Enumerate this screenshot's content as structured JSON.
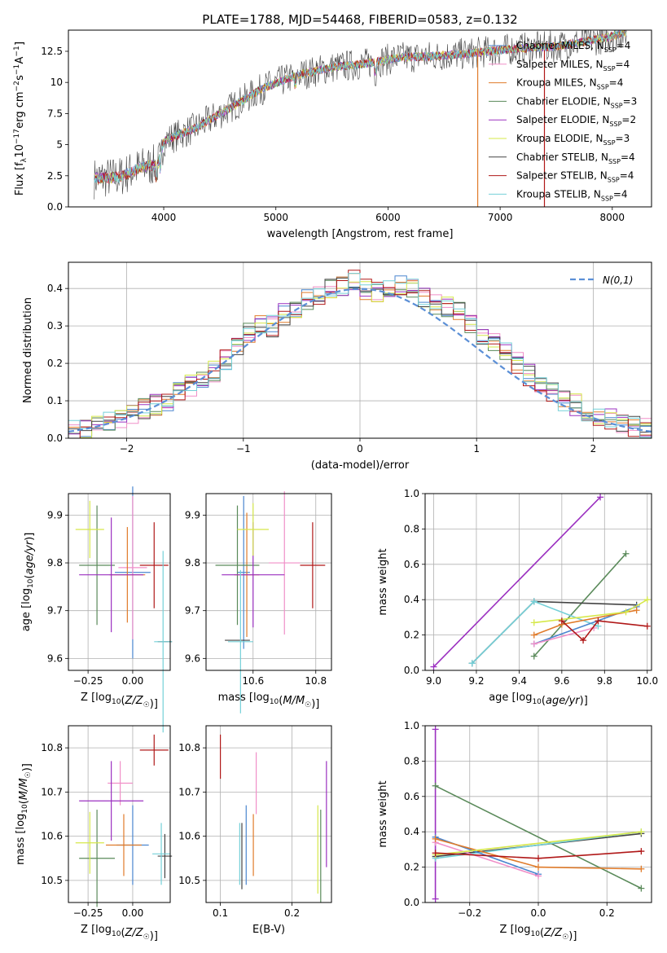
{
  "title": "PLATE=1788, MJD=54468, FIBERID=0583, z=0.132",
  "colors": {
    "chabrier_miles": "#4a86cf",
    "salpeter_miles": "#f08fc8",
    "kroupa_miles": "#e07b2a",
    "chabrier_elodie": "#5a8a5a",
    "salpeter_elodie": "#9b30c0",
    "kroupa_elodie": "#d6e84a",
    "chabrier_stelib": "#444444",
    "salpeter_stelib": "#b01818",
    "kroupa_stelib": "#74d0d8",
    "normal": "#5b8fd6",
    "grid": "#b0b0b0"
  },
  "chart_data": [
    {
      "id": "spectrum",
      "type": "line",
      "xlabel": "wavelength [Angstrom, rest frame]",
      "ylabel_parts": [
        "Flux [f",
        "λ",
        "10",
        "−17",
        " erg cm",
        "−2",
        " s",
        "−1",
        " A",
        "−1",
        "]"
      ],
      "xlim": [
        3150,
        8350
      ],
      "ylim": [
        0,
        14.2
      ],
      "xticks": [
        4000,
        5000,
        6000,
        7000,
        8000
      ],
      "yticks": [
        0.0,
        2.5,
        5.0,
        7.5,
        10.0,
        12.5
      ],
      "legend": [
        {
          "name": "Chabrier MILES",
          "n": "4",
          "color_key": "chabrier_miles"
        },
        {
          "name": "Salpeter MILES",
          "n": "4",
          "color_key": "salpeter_miles"
        },
        {
          "name": "Kroupa MILES",
          "n": "4",
          "color_key": "kroupa_miles"
        },
        {
          "name": "Chabrier ELODIE",
          "n": "3",
          "color_key": "chabrier_elodie"
        },
        {
          "name": "Salpeter ELODIE",
          "n": "2",
          "color_key": "salpeter_elodie"
        },
        {
          "name": "Kroupa ELODIE",
          "n": "3",
          "color_key": "kroupa_elodie"
        },
        {
          "name": "Chabrier STELIB",
          "n": "4",
          "color_key": "chabrier_stelib"
        },
        {
          "name": "Salpeter STELIB",
          "n": "4",
          "color_key": "salpeter_stelib"
        },
        {
          "name": "Kroupa STELIB",
          "n": "4",
          "color_key": "kroupa_stelib"
        }
      ],
      "continuum": [
        [
          3380,
          2.3
        ],
        [
          3600,
          2.4
        ],
        [
          3800,
          3.2
        ],
        [
          3950,
          3.4
        ],
        [
          4000,
          5.3
        ],
        [
          4300,
          6.4
        ],
        [
          4600,
          8.0
        ],
        [
          4900,
          9.6
        ],
        [
          5200,
          10.6
        ],
        [
          5500,
          11.2
        ],
        [
          5800,
          11.5
        ],
        [
          6100,
          12.0
        ],
        [
          6400,
          12.1
        ],
        [
          6700,
          12.3
        ],
        [
          7000,
          12.6
        ],
        [
          7300,
          12.8
        ],
        [
          7500,
          12.9
        ],
        [
          7700,
          13.2
        ],
        [
          7950,
          13.6
        ],
        [
          8100,
          14.0
        ]
      ],
      "spikes": [
        [
          6800,
          0
        ],
        [
          7395,
          0
        ]
      ]
    },
    {
      "id": "residuals",
      "type": "step",
      "xlabel": "(data-model)/error",
      "ylabel": "Normed distribution",
      "xlim": [
        -2.5,
        2.5
      ],
      "ylim": [
        0,
        0.47
      ],
      "xticks": [
        -2,
        -1,
        0,
        1,
        2
      ],
      "yticks": [
        0.0,
        0.1,
        0.2,
        0.3,
        0.4
      ],
      "bin_edges_start": -2.5,
      "bin_width": 0.1,
      "hist": [
        0.02,
        0.03,
        0.03,
        0.04,
        0.05,
        0.06,
        0.08,
        0.09,
        0.1,
        0.12,
        0.14,
        0.16,
        0.18,
        0.21,
        0.24,
        0.28,
        0.3,
        0.3,
        0.33,
        0.35,
        0.37,
        0.38,
        0.4,
        0.41,
        0.42,
        0.4,
        0.39,
        0.4,
        0.41,
        0.4,
        0.38,
        0.36,
        0.35,
        0.34,
        0.3,
        0.28,
        0.26,
        0.23,
        0.2,
        0.17,
        0.14,
        0.12,
        0.1,
        0.09,
        0.07,
        0.06,
        0.05,
        0.04,
        0.03,
        0.03
      ],
      "normal_label": "N(0,1)"
    },
    {
      "id": "age_Z",
      "type": "errorbar",
      "xlabel": "Z [log10(Z/Z☉)]",
      "ylabel": "age  [log10(age/yr)]",
      "xlim": [
        -0.36,
        0.21
      ],
      "ylim": [
        9.575,
        9.945
      ],
      "xticks": [
        -0.25,
        0.0
      ],
      "xticklabels": [
        "−0.25",
        "0.00"
      ],
      "yticks": [
        9.6,
        9.7,
        9.8,
        9.9
      ],
      "points": [
        {
          "k": "chabrier_miles",
          "x": 0.0,
          "xe": 0.1,
          "y": 9.78,
          "ye": 0.18
        },
        {
          "k": "salpeter_miles",
          "x": 0.0,
          "xe": 0.08,
          "y": 9.79,
          "ye": 0.15
        },
        {
          "k": "kroupa_miles",
          "x": -0.03,
          "xe": 0.1,
          "y": 9.775,
          "ye": 0.1
        },
        {
          "k": "chabrier_elodie",
          "x": -0.2,
          "xe": 0.1,
          "y": 9.795,
          "ye": 0.125
        },
        {
          "k": "salpeter_elodie",
          "x": -0.12,
          "xe": 0.18,
          "y": 9.775,
          "ye": 0.12
        },
        {
          "k": "kroupa_elodie",
          "x": -0.24,
          "xe": 0.08,
          "y": 9.87,
          "ye": 0.06
        },
        {
          "k": "chabrier_stelib",
          "x": 0.18,
          "xe": 0.04,
          "y": 9.635,
          "ye": 0.0
        },
        {
          "k": "salpeter_stelib",
          "x": 0.12,
          "xe": 0.08,
          "y": 9.795,
          "ye": 0.09
        },
        {
          "k": "kroupa_stelib",
          "x": 0.17,
          "xe": 0.05,
          "y": 9.635,
          "ye": 0.19
        }
      ]
    },
    {
      "id": "age_mass",
      "type": "errorbar",
      "xlabel": "mass [log10(M/M☉)]",
      "ylabel": "",
      "xlim": [
        10.45,
        10.85
      ],
      "ylim": [
        9.575,
        9.945
      ],
      "xticks": [
        10.6,
        10.8
      ],
      "xticklabels": [
        "10.6",
        "10.8"
      ],
      "yticks": [
        9.6,
        9.7,
        9.8,
        9.9
      ],
      "points": [
        {
          "k": "chabrier_miles",
          "x": 10.57,
          "xe": 0.02,
          "y": 9.78,
          "ye": 0.16
        },
        {
          "k": "salpeter_miles",
          "x": 10.7,
          "xe": 0.05,
          "y": 9.8,
          "ye": 0.15
        },
        {
          "k": "kroupa_miles",
          "x": 10.58,
          "xe": 0.04,
          "y": 9.775,
          "ye": 0.13
        },
        {
          "k": "chabrier_elodie",
          "x": 10.55,
          "xe": 0.07,
          "y": 9.795,
          "ye": 0.125
        },
        {
          "k": "salpeter_elodie",
          "x": 10.6,
          "xe": 0.1,
          "y": 9.775,
          "ye": 0.11
        },
        {
          "k": "kroupa_elodie",
          "x": 10.6,
          "xe": 0.05,
          "y": 9.87,
          "ye": 0.055
        },
        {
          "k": "chabrier_stelib",
          "x": 10.55,
          "xe": 0.04,
          "y": 9.638,
          "ye": 0.0
        },
        {
          "k": "salpeter_stelib",
          "x": 10.79,
          "xe": 0.04,
          "y": 9.795,
          "ye": 0.09
        },
        {
          "k": "kroupa_stelib",
          "x": 10.56,
          "xe": 0.04,
          "y": 9.635,
          "ye": 0.15
        }
      ]
    },
    {
      "id": "mw_age",
      "type": "line",
      "xlabel": "age  [log10(age/yr)]",
      "ylabel": "mass weight",
      "xlim": [
        8.96,
        10.02
      ],
      "ylim": [
        0,
        1.0
      ],
      "xticks": [
        9.0,
        9.2,
        9.4,
        9.6,
        9.8,
        10.0
      ],
      "xticklabels": [
        "9.0",
        "9.2",
        "9.4",
        "9.6",
        "9.8",
        "10.0"
      ],
      "yticks": [
        0.0,
        0.2,
        0.4,
        0.6,
        0.8,
        1.0
      ],
      "yticklabels": [
        "0.0",
        "0.2",
        "0.4",
        "0.6",
        "0.8",
        "1.0"
      ],
      "series": [
        {
          "k": "salpeter_elodie",
          "x": [
            9.0,
            9.78
          ],
          "y": [
            0.02,
            0.98
          ]
        },
        {
          "k": "chabrier_elodie",
          "x": [
            9.47,
            9.9
          ],
          "y": [
            0.08,
            0.66
          ]
        },
        {
          "k": "chabrier_stelib",
          "x": [
            9.18,
            9.47,
            9.95
          ],
          "y": [
            0.04,
            0.39,
            0.37
          ]
        },
        {
          "k": "kroupa_stelib",
          "x": [
            9.18,
            9.47,
            9.77
          ],
          "y": [
            0.04,
            0.39,
            0.25
          ]
        },
        {
          "k": "chabrier_miles",
          "x": [
            9.47,
            9.95
          ],
          "y": [
            0.15,
            0.36
          ]
        },
        {
          "k": "salpeter_miles",
          "x": [
            9.47,
            9.75
          ],
          "y": [
            0.15,
            0.24
          ]
        },
        {
          "k": "kroupa_miles",
          "x": [
            9.47,
            9.6,
            9.95
          ],
          "y": [
            0.2,
            0.26,
            0.34
          ]
        },
        {
          "k": "kroupa_elodie",
          "x": [
            9.47,
            9.9,
            10.0
          ],
          "y": [
            0.27,
            0.33,
            0.4
          ]
        },
        {
          "k": "salpeter_stelib",
          "x": [
            9.6,
            9.7,
            9.77,
            10.0
          ],
          "y": [
            0.28,
            0.17,
            0.28,
            0.25
          ]
        }
      ]
    },
    {
      "id": "mass_Z",
      "type": "errorbar",
      "xlabel": "Z [log10(Z/Z☉)]",
      "ylabel": "mass [log10(M/M☉)]",
      "xlim": [
        -0.36,
        0.21
      ],
      "ylim": [
        10.45,
        10.85
      ],
      "xticks": [
        -0.25,
        0.0
      ],
      "xticklabels": [
        "−0.25",
        "0.00"
      ],
      "yticks": [
        10.5,
        10.6,
        10.7,
        10.8
      ],
      "points": [
        {
          "k": "chabrier_miles",
          "x": 0.0,
          "xe": 0.09,
          "y": 10.58,
          "ye": 0.09
        },
        {
          "k": "salpeter_miles",
          "x": -0.07,
          "xe": 0.07,
          "y": 10.72,
          "ye": 0.05
        },
        {
          "k": "kroupa_miles",
          "x": -0.05,
          "xe": 0.1,
          "y": 10.58,
          "ye": 0.07
        },
        {
          "k": "chabrier_elodie",
          "x": -0.2,
          "xe": 0.1,
          "y": 10.55,
          "ye": 0.11
        },
        {
          "k": "salpeter_elodie",
          "x": -0.12,
          "xe": 0.18,
          "y": 10.68,
          "ye": 0.09
        },
        {
          "k": "kroupa_elodie",
          "x": -0.24,
          "xe": 0.08,
          "y": 10.585,
          "ye": 0.07
        },
        {
          "k": "chabrier_stelib",
          "x": 0.18,
          "xe": 0.04,
          "y": 10.555,
          "ye": 0.05
        },
        {
          "k": "salpeter_stelib",
          "x": 0.12,
          "xe": 0.08,
          "y": 10.795,
          "ye": 0.035
        },
        {
          "k": "kroupa_stelib",
          "x": 0.16,
          "xe": 0.05,
          "y": 10.56,
          "ye": 0.07
        }
      ]
    },
    {
      "id": "mass_ebv",
      "type": "errorbar",
      "xlabel": "E(B-V)",
      "ylabel": "",
      "xlim": [
        0.08,
        0.255
      ],
      "ylim": [
        10.45,
        10.85
      ],
      "xticks": [
        0.1,
        0.2
      ],
      "xticklabels": [
        "0.1",
        "0.2"
      ],
      "yticks": [
        10.5,
        10.6,
        10.7,
        10.8
      ],
      "points": [
        {
          "k": "chabrier_miles",
          "x": 0.136,
          "xe": 0,
          "y": 10.58,
          "ye": 0.09
        },
        {
          "k": "salpeter_miles",
          "x": 0.15,
          "xe": 0,
          "y": 10.72,
          "ye": 0.07
        },
        {
          "k": "kroupa_miles",
          "x": 0.146,
          "xe": 0,
          "y": 10.58,
          "ye": 0.07
        },
        {
          "k": "chabrier_elodie",
          "x": 0.24,
          "xe": 0,
          "y": 10.555,
          "ye": 0.105
        },
        {
          "k": "salpeter_elodie",
          "x": 0.248,
          "xe": 0,
          "y": 10.65,
          "ye": 0.12
        },
        {
          "k": "kroupa_elodie",
          "x": 0.236,
          "xe": 0,
          "y": 10.57,
          "ye": 0.1
        },
        {
          "k": "chabrier_stelib",
          "x": 0.13,
          "xe": 0,
          "y": 10.555,
          "ye": 0.075
        },
        {
          "k": "salpeter_stelib",
          "x": 0.1,
          "xe": 0,
          "y": 10.78,
          "ye": 0.05
        },
        {
          "k": "kroupa_stelib",
          "x": 0.127,
          "xe": 0,
          "y": 10.56,
          "ye": 0.07
        }
      ]
    },
    {
      "id": "mw_Z",
      "type": "line",
      "xlabel": "Z [log10(Z/Z☉)]",
      "ylabel": "mass weight",
      "xlim": [
        -0.33,
        0.33
      ],
      "ylim": [
        0,
        1.0
      ],
      "xticks": [
        -0.2,
        0.0,
        0.2
      ],
      "xticklabels": [
        "−0.2",
        "0.0",
        "0.2"
      ],
      "yticks": [
        0.0,
        0.2,
        0.4,
        0.6,
        0.8,
        1.0
      ],
      "yticklabels": [
        "0.0",
        "0.2",
        "0.4",
        "0.6",
        "0.8",
        "1.0"
      ],
      "series": [
        {
          "k": "salpeter_elodie",
          "x": [
            -0.3,
            -0.3
          ],
          "y": [
            0.02,
            0.98
          ]
        },
        {
          "k": "chabrier_elodie",
          "x": [
            -0.3,
            0.3
          ],
          "y": [
            0.66,
            0.08
          ]
        },
        {
          "k": "chabrier_stelib",
          "x": [
            -0.3,
            0.3
          ],
          "y": [
            0.26,
            0.39
          ]
        },
        {
          "k": "kroupa_stelib",
          "x": [
            -0.3,
            0.3
          ],
          "y": [
            0.25,
            0.4
          ]
        },
        {
          "k": "chabrier_miles",
          "x": [
            -0.3,
            0.0
          ],
          "y": [
            0.37,
            0.16
          ]
        },
        {
          "k": "salpeter_miles",
          "x": [
            -0.3,
            0.0
          ],
          "y": [
            0.34,
            0.15
          ]
        },
        {
          "k": "kroupa_miles",
          "x": [
            -0.3,
            0.0,
            0.3
          ],
          "y": [
            0.36,
            0.2,
            0.19
          ]
        },
        {
          "k": "kroupa_elodie",
          "x": [
            -0.3,
            0.3
          ],
          "y": [
            0.27,
            0.4
          ]
        },
        {
          "k": "salpeter_stelib",
          "x": [
            -0.3,
            0.0,
            0.3
          ],
          "y": [
            0.28,
            0.25,
            0.29
          ]
        }
      ]
    }
  ]
}
